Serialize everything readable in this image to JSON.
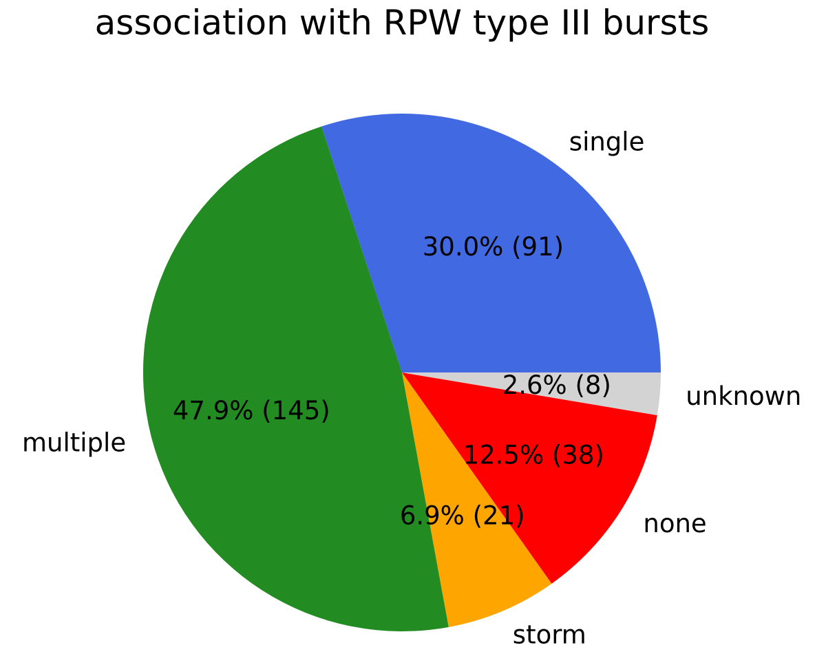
{
  "chart_data": {
    "type": "pie",
    "title": "association with RPW type III bursts",
    "start_angle_deg": 0,
    "direction": "counterclockwise",
    "slices": [
      {
        "label": "single",
        "value": 91,
        "percent": "30.0%",
        "color": "#4169e1"
      },
      {
        "label": "multiple",
        "value": 145,
        "percent": "47.9%",
        "color": "#228b22"
      },
      {
        "label": "storm",
        "value": 21,
        "percent": "6.9%",
        "color": "#ffa500"
      },
      {
        "label": "none",
        "value": 38,
        "percent": "12.5%",
        "color": "#ff0000"
      },
      {
        "label": "unknown",
        "value": 8,
        "percent": "2.6%",
        "color": "#d3d3d3"
      }
    ]
  }
}
